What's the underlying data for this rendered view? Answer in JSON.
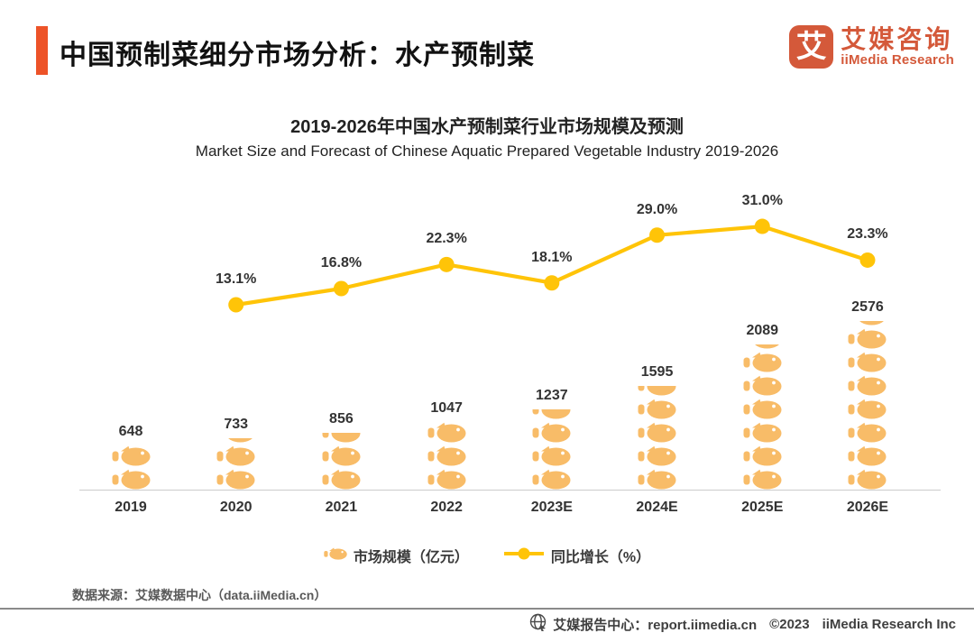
{
  "header": {
    "title": "中国预制菜细分市场分析：水产预制菜"
  },
  "logo": {
    "badge_char": "艾",
    "name_cn": "艾媒咨询",
    "name_en": "iiMedia Research"
  },
  "colors": {
    "accent": "#ED5328",
    "logo": "#D4593A",
    "line": "#FFC408",
    "fish": "#F8BC68"
  },
  "chart_data": {
    "type": "bar",
    "subtype": "pictogram bar + line combo",
    "title": "2019-2026年中国水产预制菜行业市场规模及预测",
    "subtitle": "Market Size and Forecast of Chinese Aquatic Prepared Vegetable Industry 2019-2026",
    "categories": [
      "2019",
      "2020",
      "2021",
      "2022",
      "2023E",
      "2024E",
      "2025E",
      "2026E"
    ],
    "series": [
      {
        "name": "市场规模（亿元）",
        "type": "pictogram-bar",
        "icon": "fish",
        "unit": "亿元",
        "values": [
          648,
          733,
          856,
          1047,
          1237,
          1595,
          2089,
          2576
        ],
        "icon_units": [
          2,
          2.2,
          2.5,
          3,
          3.5,
          4.5,
          6.2,
          7.2
        ],
        "color": "#F8BC68"
      },
      {
        "name": "同比增长（%）",
        "type": "line",
        "unit": "%",
        "values": [
          null,
          13.1,
          16.8,
          22.3,
          18.1,
          29.0,
          31.0,
          23.3
        ],
        "color": "#FFC408"
      }
    ],
    "value_labels": true,
    "legend_position": "bottom",
    "axes": {
      "x_baseline_visible": true,
      "y_axis_visible": false
    }
  },
  "footer": {
    "source": "数据来源：艾媒数据中心（data.iiMedia.cn）",
    "report_center": "艾媒报告中心：report.iimedia.cn",
    "copyright": "©2023",
    "company": "iiMedia Research Inc"
  }
}
